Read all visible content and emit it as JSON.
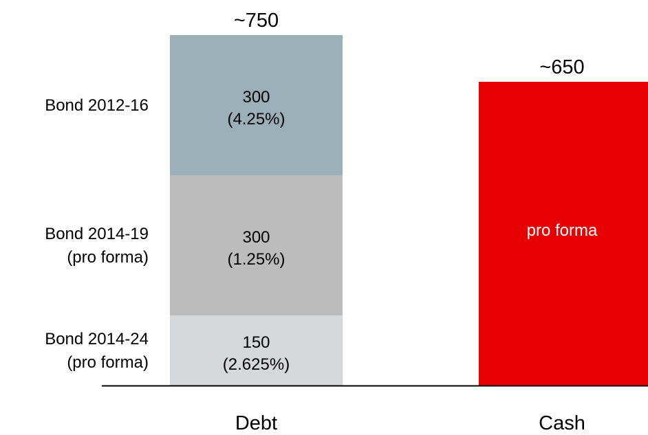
{
  "chart_data": {
    "type": "bar",
    "stacked": true,
    "categories": [
      "Debt",
      "Cash"
    ],
    "ylim": [
      0,
      800
    ],
    "grid": false,
    "legend": "none",
    "debt": {
      "total_label": "~750",
      "segments": [
        {
          "row_label": [
            "Bond 2014-24",
            "(pro forma)"
          ],
          "value": 150,
          "value_label": "150",
          "rate_label": "(2.625%)",
          "color": "#d6d7d9"
        },
        {
          "row_label": [
            "Bond 2014-19",
            "(pro forma)"
          ],
          "value": 300,
          "value_label": "300",
          "rate_label": "(1.25%)",
          "color": "#bcbcbc"
        },
        {
          "row_label": [
            "Bond 2012-16"
          ],
          "value": 300,
          "value_label": "300",
          "rate_label": "(4.25%)",
          "color": "#9aafb7"
        }
      ]
    },
    "cash": {
      "total_label": "~650",
      "value": 650,
      "note": "pro forma",
      "color": "#e60000"
    },
    "axis_color": "#000000"
  }
}
